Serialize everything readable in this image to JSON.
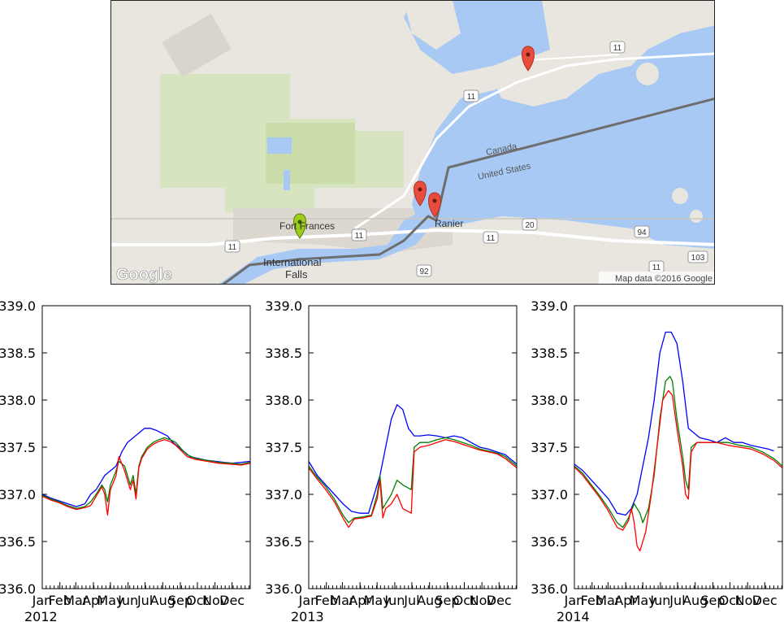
{
  "map": {
    "labels": {
      "city1": "Fort Frances",
      "city2_line1": "International",
      "city2_line2": "Falls",
      "town": "Ranier",
      "country_north": "Canada",
      "country_south": "United States"
    },
    "road_shields": [
      "11",
      "11",
      "11",
      "11",
      "20",
      "94",
      "92",
      "103",
      "11"
    ],
    "attribution": "Map data ©2016 Google",
    "logo": "Google",
    "markers": {
      "red": 3,
      "green": 1
    },
    "colors": {
      "water": "#a9c9f5",
      "land": "#e8e6df",
      "park": "#cfe0b4",
      "urban": "#d9d4c8",
      "border": "#666666",
      "road": "#ffffff"
    }
  },
  "chart_data": [
    {
      "type": "line",
      "year_label": "2012",
      "xlabel_ticks": [
        "Jan",
        "Feb",
        "Mar",
        "Apr",
        "May",
        "Jun",
        "Jul",
        "Aug",
        "Sep",
        "Oct",
        "Nov",
        "Dec"
      ],
      "yticks": [
        "336.0",
        "336.5",
        "337.0",
        "337.5",
        "338.0",
        "338.5",
        "339.0"
      ],
      "ylim": [
        336.0,
        339.0
      ],
      "xlim": [
        0,
        366
      ],
      "grid": false,
      "series": [
        {
          "color": "#0000ff",
          "x": [
            0,
            15,
            30,
            45,
            60,
            75,
            85,
            95,
            110,
            120,
            130,
            140,
            150,
            160,
            170,
            180,
            190,
            200,
            210,
            220,
            230,
            240,
            250,
            260,
            275,
            290,
            305,
            320,
            335,
            350,
            366
          ],
          "y": [
            337.0,
            336.96,
            336.93,
            336.9,
            336.87,
            336.9,
            337.0,
            337.05,
            337.2,
            337.25,
            337.3,
            337.45,
            337.55,
            337.6,
            337.65,
            337.7,
            337.7,
            337.68,
            337.65,
            337.62,
            337.55,
            337.5,
            337.45,
            337.4,
            337.38,
            337.36,
            337.35,
            337.34,
            337.33,
            337.34,
            337.35
          ]
        },
        {
          "color": "#008000",
          "x": [
            0,
            15,
            30,
            45,
            60,
            75,
            85,
            95,
            105,
            110,
            115,
            120,
            130,
            135,
            145,
            155,
            160,
            165,
            170,
            175,
            185,
            195,
            205,
            215,
            225,
            235,
            245,
            255,
            270,
            290,
            310,
            330,
            350,
            366
          ],
          "y": [
            336.99,
            336.95,
            336.92,
            336.88,
            336.85,
            336.87,
            336.92,
            337.0,
            337.1,
            337.05,
            336.92,
            337.1,
            337.25,
            337.35,
            337.3,
            337.1,
            337.2,
            337.0,
            337.3,
            337.4,
            337.5,
            337.55,
            337.58,
            337.6,
            337.58,
            337.55,
            337.48,
            337.42,
            337.38,
            337.36,
            337.34,
            337.33,
            337.32,
            337.34
          ]
        },
        {
          "color": "#ff0000",
          "x": [
            0,
            15,
            30,
            45,
            60,
            75,
            85,
            95,
            105,
            110,
            115,
            120,
            130,
            135,
            145,
            155,
            160,
            165,
            170,
            175,
            185,
            195,
            205,
            215,
            225,
            235,
            245,
            255,
            270,
            290,
            310,
            330,
            350,
            366
          ],
          "y": [
            336.98,
            336.94,
            336.91,
            336.87,
            336.84,
            336.86,
            336.88,
            336.98,
            337.08,
            337.0,
            336.78,
            337.05,
            337.2,
            337.4,
            337.25,
            337.05,
            337.15,
            336.95,
            337.28,
            337.38,
            337.48,
            337.53,
            337.56,
            337.58,
            337.56,
            337.52,
            337.46,
            337.4,
            337.37,
            337.35,
            337.33,
            337.32,
            337.31,
            337.33
          ]
        }
      ]
    },
    {
      "type": "line",
      "year_label": "2013",
      "xlabel_ticks": [
        "Jan",
        "Feb",
        "Mar",
        "Apr",
        "May",
        "Jun",
        "Jul",
        "Aug",
        "Sep",
        "Oct",
        "Nov",
        "Dec"
      ],
      "yticks": [
        "336.0",
        "336.5",
        "337.0",
        "337.5",
        "338.0",
        "338.5",
        "339.0"
      ],
      "ylim": [
        336.0,
        339.0
      ],
      "xlim": [
        0,
        365
      ],
      "grid": false,
      "series": [
        {
          "color": "#0000ff",
          "x": [
            0,
            15,
            30,
            45,
            60,
            75,
            90,
            105,
            115,
            125,
            135,
            145,
            155,
            165,
            175,
            185,
            195,
            210,
            225,
            240,
            255,
            270,
            285,
            300,
            315,
            330,
            345,
            365
          ],
          "y": [
            337.35,
            337.2,
            337.1,
            337.0,
            336.9,
            336.82,
            336.8,
            336.8,
            337.0,
            337.2,
            337.5,
            337.8,
            337.95,
            337.9,
            337.7,
            337.62,
            337.62,
            337.63,
            337.62,
            337.6,
            337.62,
            337.6,
            337.55,
            337.5,
            337.48,
            337.45,
            337.42,
            337.32
          ]
        },
        {
          "color": "#008000",
          "x": [
            0,
            15,
            30,
            45,
            60,
            70,
            80,
            95,
            110,
            120,
            125,
            130,
            135,
            145,
            155,
            165,
            180,
            185,
            195,
            210,
            225,
            240,
            255,
            270,
            285,
            300,
            315,
            330,
            345,
            365
          ],
          "y": [
            337.3,
            337.18,
            337.08,
            336.95,
            336.78,
            336.7,
            336.75,
            336.76,
            336.78,
            337.0,
            337.2,
            336.85,
            336.9,
            337.0,
            337.15,
            337.1,
            337.05,
            337.5,
            337.55,
            337.55,
            337.58,
            337.6,
            337.58,
            337.55,
            337.52,
            337.48,
            337.46,
            337.44,
            337.4,
            337.3
          ]
        },
        {
          "color": "#ff0000",
          "x": [
            0,
            15,
            30,
            45,
            60,
            70,
            80,
            95,
            110,
            120,
            125,
            130,
            135,
            145,
            155,
            165,
            180,
            185,
            195,
            210,
            225,
            240,
            255,
            270,
            285,
            300,
            315,
            330,
            345,
            365
          ],
          "y": [
            337.28,
            337.16,
            337.05,
            336.92,
            336.75,
            336.65,
            336.74,
            336.75,
            336.77,
            336.95,
            337.15,
            336.75,
            336.85,
            336.9,
            337.0,
            336.85,
            336.8,
            337.45,
            337.5,
            337.52,
            337.55,
            337.58,
            337.56,
            337.53,
            337.5,
            337.47,
            337.45,
            337.43,
            337.38,
            337.28
          ]
        }
      ]
    },
    {
      "type": "line",
      "year_label": "2014",
      "xlabel_ticks": [
        "Jan",
        "Feb",
        "Mar",
        "Apr",
        "May",
        "Jun",
        "Jul",
        "Aug",
        "Sep",
        "Oct",
        "Nov",
        "Dec"
      ],
      "yticks": [
        "336.0",
        "336.5",
        "337.0",
        "337.5",
        "338.0",
        "338.5",
        "339.0"
      ],
      "ylim": [
        336.0,
        339.0
      ],
      "xlim": [
        0,
        365
      ],
      "grid": false,
      "series": [
        {
          "color": "#0000ff",
          "x": [
            0,
            15,
            30,
            45,
            60,
            75,
            90,
            100,
            110,
            120,
            130,
            140,
            150,
            160,
            170,
            180,
            190,
            200,
            210,
            220,
            235,
            250,
            265,
            280,
            295,
            310,
            325,
            340,
            350
          ],
          "y": [
            337.32,
            337.25,
            337.15,
            337.05,
            336.95,
            336.8,
            336.78,
            336.85,
            337.0,
            337.3,
            337.6,
            338.0,
            338.5,
            338.72,
            338.72,
            338.6,
            338.2,
            337.7,
            337.65,
            337.6,
            337.58,
            337.55,
            337.6,
            337.55,
            337.55,
            337.52,
            337.5,
            337.48,
            337.46
          ]
        },
        {
          "color": "#008000",
          "x": [
            0,
            15,
            30,
            45,
            60,
            75,
            85,
            95,
            105,
            115,
            120,
            130,
            140,
            150,
            160,
            168,
            172,
            180,
            190,
            195,
            200,
            205,
            215,
            230,
            250,
            270,
            290,
            310,
            330,
            350,
            365
          ],
          "y": [
            337.3,
            337.22,
            337.1,
            336.98,
            336.85,
            336.7,
            336.65,
            336.75,
            336.9,
            336.8,
            336.7,
            336.85,
            337.2,
            337.8,
            338.2,
            338.25,
            338.2,
            337.8,
            337.4,
            337.15,
            337.05,
            337.5,
            337.55,
            337.55,
            337.55,
            337.55,
            337.52,
            337.5,
            337.45,
            337.38,
            337.3
          ]
        },
        {
          "color": "#ff0000",
          "x": [
            0,
            15,
            30,
            45,
            60,
            75,
            85,
            95,
            100,
            105,
            110,
            115,
            125,
            135,
            145,
            155,
            165,
            168,
            172,
            180,
            190,
            195,
            200,
            205,
            215,
            230,
            250,
            270,
            290,
            310,
            330,
            350,
            365
          ],
          "y": [
            337.29,
            337.2,
            337.08,
            336.96,
            336.82,
            336.65,
            336.62,
            336.72,
            336.85,
            336.7,
            336.45,
            336.4,
            336.6,
            337.0,
            337.5,
            338.0,
            338.1,
            338.08,
            338.05,
            337.7,
            337.3,
            337.0,
            336.95,
            337.45,
            337.55,
            337.55,
            337.55,
            337.52,
            337.5,
            337.48,
            337.43,
            337.36,
            337.28
          ]
        }
      ]
    }
  ]
}
